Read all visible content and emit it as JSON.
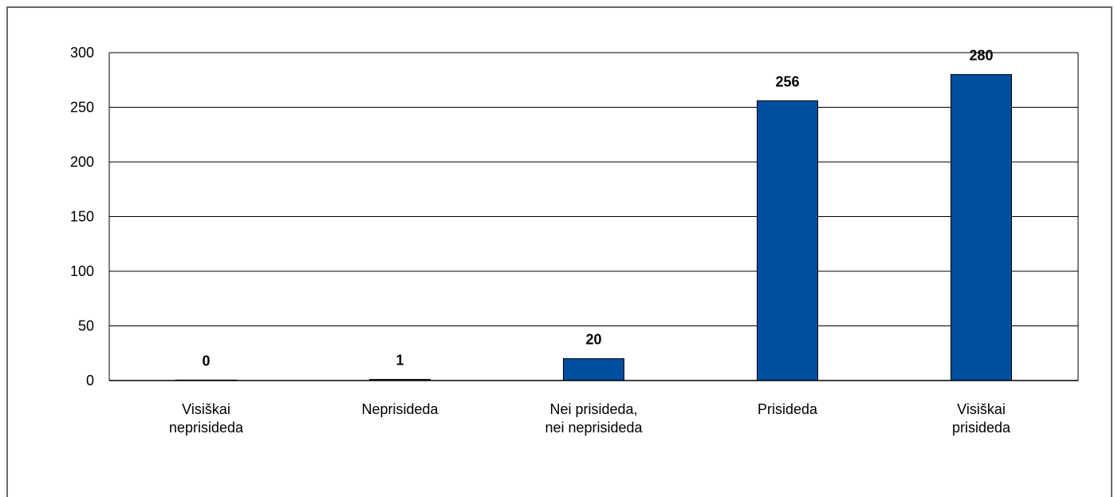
{
  "chart_data": {
    "type": "bar",
    "title": "",
    "xlabel": "",
    "ylabel": "",
    "categories": [
      [
        "Visiškai",
        "neprisideda"
      ],
      [
        "Neprisideda"
      ],
      [
        "Nei prisideda,",
        "nei neprisideda"
      ],
      [
        "Prisideda"
      ],
      [
        "Visiškai",
        "prisideda"
      ]
    ],
    "values": [
      0,
      1,
      20,
      256,
      280
    ],
    "data_labels": [
      "0",
      "1",
      "20",
      "256",
      "280"
    ],
    "ylim": [
      0,
      300
    ],
    "yticks": [
      0,
      50,
      100,
      150,
      200,
      250,
      300
    ],
    "ytick_labels": [
      "0",
      "50",
      "100",
      "150",
      "200",
      "250",
      "300"
    ],
    "grid": true,
    "legend": "none",
    "bar_color": "#004f9f"
  }
}
